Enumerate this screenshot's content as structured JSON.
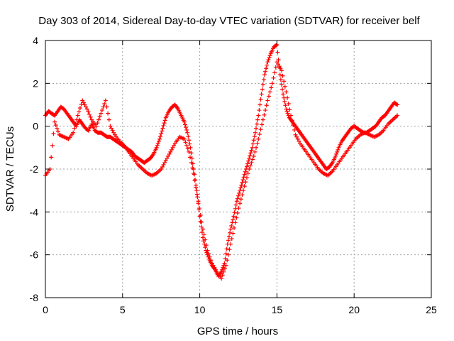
{
  "chart_data": {
    "type": "scatter",
    "title": "Day 303 of 2014, Sidereal Day-to-day VTEC variation (SDTVAR) for receiver belf",
    "xlabel": "GPS time / hours",
    "ylabel": "SDTVAR / TECUs",
    "xlim": [
      0,
      25
    ],
    "ylim": [
      -8,
      4
    ],
    "xticks": [
      0,
      5,
      10,
      15,
      20,
      25
    ],
    "yticks": [
      -8,
      -6,
      -4,
      -2,
      0,
      2,
      4
    ],
    "grid": true,
    "marker": "+",
    "color": "#ff0000",
    "series": [
      {
        "x": [
          0.0,
          0.2,
          0.4,
          0.6,
          0.8,
          1.0,
          1.2,
          1.4,
          1.6,
          1.8,
          2.0,
          2.2,
          2.4,
          2.6,
          2.8,
          3.0,
          3.2,
          3.4,
          3.6,
          3.8,
          4.0,
          4.2,
          4.4,
          4.6,
          4.8,
          5.0,
          5.2,
          5.4,
          5.6,
          5.8,
          6.0,
          6.2,
          6.4,
          6.6,
          6.8,
          7.0,
          7.2,
          7.4,
          7.6,
          7.8,
          8.0,
          8.2,
          8.4,
          8.6,
          8.8,
          9.0,
          9.2,
          9.4,
          9.6,
          9.8,
          10.0,
          10.2,
          10.4,
          10.6,
          10.8,
          11.0,
          11.2,
          11.4,
          11.6,
          11.8,
          12.0,
          12.2,
          12.4,
          12.6,
          12.8,
          13.0,
          13.2,
          13.4,
          13.6,
          13.8,
          14.0,
          14.2,
          14.4,
          14.6,
          14.8,
          15.0,
          15.2,
          15.4,
          15.6,
          15.8,
          16.0,
          16.2,
          16.4,
          16.6,
          16.8,
          17.0,
          17.2,
          17.4,
          17.6,
          17.8,
          18.0,
          18.2,
          18.4,
          18.6,
          18.8,
          19.0,
          19.2,
          19.4,
          19.6,
          19.8,
          20.0,
          20.2,
          20.4,
          20.6,
          20.8,
          21.0,
          21.2,
          21.4,
          21.6,
          21.8,
          22.0,
          22.2,
          22.4,
          22.6,
          22.8
        ],
        "y": [
          0.5,
          0.7,
          0.6,
          0.5,
          0.7,
          0.9,
          0.8,
          0.6,
          0.4,
          0.2,
          0.0,
          0.3,
          0.1,
          -0.1,
          -0.2,
          0.1,
          -0.2,
          -0.3,
          -0.3,
          -0.4,
          -0.5,
          -0.5,
          -0.6,
          -0.7,
          -0.8,
          -0.9,
          -1.0,
          -1.1,
          -1.2,
          -1.4,
          -1.5,
          -1.6,
          -1.7,
          -1.6,
          -1.5,
          -1.3,
          -1.0,
          -0.6,
          -0.1,
          0.4,
          0.7,
          0.9,
          1.0,
          0.8,
          0.5,
          0.2,
          -0.3,
          -1.0,
          -2.0,
          -3.0,
          -4.2,
          -5.2,
          -5.8,
          -6.2,
          -6.5,
          -6.7,
          -7.0,
          -6.8,
          -6.4,
          -5.5,
          -4.8,
          -4.2,
          -3.5,
          -3.0,
          -2.5,
          -2.0,
          -1.5,
          -1.0,
          -0.3,
          0.5,
          1.5,
          2.4,
          3.0,
          3.4,
          3.7,
          3.8,
          2.4,
          1.5,
          0.8,
          0.4,
          0.2,
          0.0,
          -0.2,
          -0.4,
          -0.6,
          -0.8,
          -1.0,
          -1.2,
          -1.4,
          -1.6,
          -1.8,
          -2.0,
          -1.9,
          -1.7,
          -1.4,
          -1.0,
          -0.7,
          -0.5,
          -0.3,
          -0.1,
          0.0,
          -0.1,
          -0.2,
          -0.3,
          -0.3,
          -0.2,
          -0.1,
          0.0,
          0.2,
          0.4,
          0.5,
          0.7,
          0.9,
          1.1,
          1.0
        ]
      },
      {
        "x": [
          0.0,
          0.3,
          0.6,
          0.9,
          1.2,
          1.5,
          1.8,
          2.1,
          2.4,
          2.7,
          3.0,
          3.3,
          3.6,
          3.9,
          4.2,
          4.5,
          4.8,
          5.1,
          5.4,
          5.7,
          6.0,
          6.3,
          6.6,
          6.9,
          7.2,
          7.5,
          7.8,
          8.1,
          8.4,
          8.7,
          9.0,
          9.3,
          9.6,
          9.9,
          10.2,
          10.5,
          10.8,
          11.1,
          11.4,
          11.7,
          12.0,
          12.3,
          12.6,
          12.9,
          13.2,
          13.5,
          13.8,
          14.1,
          14.4,
          14.7,
          15.0,
          15.3,
          15.6,
          15.9,
          16.2,
          16.5,
          16.8,
          17.1,
          17.4,
          17.7,
          18.0,
          18.3,
          18.6,
          18.9,
          19.2,
          19.5,
          19.8,
          20.1,
          20.4,
          20.7,
          21.0,
          21.3,
          21.6,
          21.9,
          22.2,
          22.5,
          22.8
        ],
        "y": [
          -2.3,
          -2.0,
          0.2,
          -0.4,
          -0.5,
          -0.6,
          -0.3,
          0.5,
          1.2,
          0.8,
          0.3,
          0.0,
          0.6,
          1.2,
          0.0,
          -0.4,
          -0.7,
          -0.9,
          -1.2,
          -1.5,
          -1.8,
          -2.0,
          -2.2,
          -2.3,
          -2.2,
          -2.0,
          -1.6,
          -1.2,
          -0.8,
          -0.5,
          -0.6,
          -1.2,
          -2.2,
          -3.5,
          -4.8,
          -5.8,
          -6.4,
          -6.8,
          -7.1,
          -6.5,
          -5.5,
          -4.5,
          -3.6,
          -2.8,
          -2.0,
          -1.4,
          -0.6,
          0.3,
          1.2,
          2.0,
          3.0,
          2.6,
          1.6,
          0.5,
          -0.4,
          -0.8,
          -1.1,
          -1.4,
          -1.7,
          -2.0,
          -2.2,
          -2.3,
          -2.1,
          -1.8,
          -1.5,
          -1.2,
          -0.9,
          -0.6,
          -0.4,
          -0.3,
          -0.4,
          -0.5,
          -0.4,
          -0.2,
          0.1,
          0.3,
          0.5
        ]
      }
    ]
  }
}
